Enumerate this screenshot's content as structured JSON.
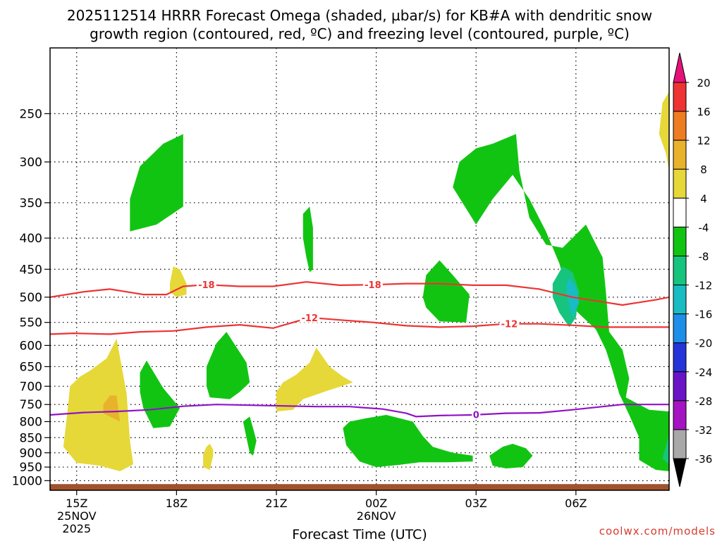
{
  "title_line1": "2025112514 HRRR Forecast Omega (shaded, µbar/s) for KB#A with dendritic snow",
  "title_line2": "growth region (contoured, red, ºC) and freezing level (contoured, purple, ºC)",
  "xlabel": "Forecast Time (UTC)",
  "credit": "coolwx.com/models",
  "chart_data": {
    "type": "heatmap",
    "title": "2025112514 HRRR Forecast Omega (shaded, µbar/s) for KB#A with dendritic snow growth region (contoured, red, ºC) and freezing level (contoured, purple, ºC)",
    "xlabel": "Forecast Time (UTC)",
    "ylabel": "",
    "x_range_hours": [
      14.2,
      32.8
    ],
    "y_range_hpa": [
      195,
      1037
    ],
    "y_scale": "log",
    "grid": true,
    "y_ticks": [
      250,
      300,
      350,
      400,
      450,
      500,
      550,
      600,
      650,
      700,
      750,
      800,
      850,
      900,
      950,
      1000
    ],
    "x_ticks": [
      {
        "h": 15,
        "label": "15Z",
        "sub": [
          "25NOV",
          "2025"
        ]
      },
      {
        "h": 18,
        "label": "18Z",
        "sub": []
      },
      {
        "h": 21,
        "label": "21Z",
        "sub": []
      },
      {
        "h": 24,
        "label": "00Z",
        "sub": [
          "26NOV"
        ]
      },
      {
        "h": 27,
        "label": "03Z",
        "sub": []
      },
      {
        "h": 30,
        "label": "06Z",
        "sub": []
      }
    ],
    "colorbar": {
      "levels": [
        20,
        16,
        12,
        8,
        4,
        -4,
        -8,
        -12,
        -16,
        -20,
        -24,
        -28,
        -32,
        -36
      ],
      "colors": [
        "#ee3333",
        "#ee7d22",
        "#e9b22b",
        "#e6d838",
        "#ffffff",
        "#12c412",
        "#17c47e",
        "#18bcc2",
        "#1e8ee8",
        "#2434d8",
        "#6a14c8",
        "#a414c2",
        "#a8a8a8"
      ],
      "over_color": "#e6127a",
      "under_color": "#000000"
    },
    "shading": [
      {
        "value": -4,
        "color": "#12c412",
        "points": [
          [
            16.6,
            345
          ],
          [
            16.9,
            305
          ],
          [
            17.6,
            280
          ],
          [
            18.2,
            270
          ],
          [
            18.2,
            355
          ],
          [
            17.4,
            380
          ],
          [
            16.6,
            390
          ]
        ]
      },
      {
        "value": -4,
        "color": "#12c412",
        "points": [
          [
            21.8,
            400
          ],
          [
            21.8,
            365
          ],
          [
            22.0,
            355
          ],
          [
            22.1,
            385
          ],
          [
            22.1,
            450
          ],
          [
            22.0,
            455
          ],
          [
            21.9,
            430
          ]
        ]
      },
      {
        "value": -4,
        "color": "#12c412",
        "points": [
          [
            26.3,
            330
          ],
          [
            26.5,
            300
          ],
          [
            27.0,
            285
          ],
          [
            27.5,
            280
          ],
          [
            28.2,
            270
          ],
          [
            28.3,
            310
          ],
          [
            28.6,
            370
          ],
          [
            29.1,
            410
          ],
          [
            29.6,
            415
          ],
          [
            30.3,
            380
          ],
          [
            30.8,
            430
          ],
          [
            30.9,
            490
          ],
          [
            31.0,
            570
          ],
          [
            31.4,
            610
          ],
          [
            31.6,
            680
          ],
          [
            31.5,
            730
          ],
          [
            32.2,
            765
          ],
          [
            32.8,
            770
          ],
          [
            32.8,
            965
          ],
          [
            32.4,
            960
          ],
          [
            31.9,
            925
          ],
          [
            31.9,
            850
          ],
          [
            31.6,
            780
          ],
          [
            31.3,
            720
          ],
          [
            31.1,
            660
          ],
          [
            30.9,
            610
          ],
          [
            30.6,
            565
          ],
          [
            29.9,
            520
          ],
          [
            29.5,
            440
          ],
          [
            29.1,
            390
          ],
          [
            28.6,
            345
          ],
          [
            28.1,
            315
          ],
          [
            27.5,
            345
          ],
          [
            27.0,
            380
          ]
        ]
      },
      {
        "value": -4,
        "color": "#12c412",
        "points": [
          [
            25.4,
            500
          ],
          [
            25.5,
            460
          ],
          [
            25.9,
            435
          ],
          [
            26.3,
            460
          ],
          [
            26.8,
            495
          ],
          [
            26.7,
            550
          ],
          [
            25.9,
            548
          ],
          [
            25.5,
            520
          ]
        ]
      },
      {
        "value": -4,
        "color": "#12c412",
        "points": [
          [
            16.9,
            665
          ],
          [
            17.1,
            635
          ],
          [
            17.6,
            705
          ],
          [
            18.1,
            760
          ],
          [
            17.8,
            815
          ],
          [
            17.3,
            820
          ],
          [
            17.0,
            760
          ],
          [
            16.9,
            715
          ]
        ]
      },
      {
        "value": -4,
        "color": "#12c412",
        "points": [
          [
            18.9,
            650
          ],
          [
            19.2,
            595
          ],
          [
            19.5,
            570
          ],
          [
            20.1,
            640
          ],
          [
            20.2,
            690
          ],
          [
            19.9,
            715
          ],
          [
            19.6,
            735
          ],
          [
            19.0,
            730
          ],
          [
            18.9,
            700
          ]
        ]
      },
      {
        "value": -4,
        "color": "#12c412",
        "points": [
          [
            20.0,
            800
          ],
          [
            20.2,
            785
          ],
          [
            20.3,
            820
          ],
          [
            20.4,
            860
          ],
          [
            20.3,
            910
          ],
          [
            20.2,
            900
          ],
          [
            20.1,
            850
          ]
        ]
      },
      {
        "value": -4,
        "color": "#12c412",
        "points": [
          [
            23.0,
            820
          ],
          [
            23.2,
            800
          ],
          [
            23.7,
            790
          ],
          [
            24.3,
            780
          ],
          [
            25.1,
            800
          ],
          [
            25.4,
            845
          ],
          [
            25.7,
            880
          ],
          [
            26.3,
            900
          ],
          [
            26.9,
            910
          ],
          [
            26.9,
            930
          ],
          [
            26.1,
            933
          ],
          [
            25.3,
            933
          ],
          [
            24.7,
            942
          ],
          [
            24.0,
            950
          ],
          [
            23.5,
            930
          ],
          [
            23.1,
            875
          ]
        ]
      },
      {
        "value": -4,
        "color": "#12c412",
        "points": [
          [
            27.4,
            910
          ],
          [
            27.8,
            880
          ],
          [
            28.1,
            870
          ],
          [
            28.5,
            885
          ],
          [
            28.7,
            910
          ],
          [
            28.4,
            950
          ],
          [
            27.9,
            955
          ],
          [
            27.5,
            945
          ]
        ]
      },
      {
        "value": -8,
        "color": "#17c47e",
        "points": [
          [
            29.3,
            475
          ],
          [
            29.6,
            445
          ],
          [
            29.9,
            455
          ],
          [
            30.1,
            490
          ],
          [
            30.0,
            540
          ],
          [
            29.8,
            560
          ],
          [
            29.5,
            530
          ],
          [
            29.3,
            500
          ]
        ]
      },
      {
        "value": -8,
        "color": "#17c47e",
        "points": [
          [
            32.6,
            920
          ],
          [
            32.8,
            840
          ],
          [
            32.8,
            940
          ]
        ]
      },
      {
        "value": -12,
        "color": "#18bcc2",
        "points": [
          [
            29.8,
            465
          ],
          [
            30.0,
            480
          ],
          [
            30.1,
            510
          ],
          [
            29.9,
            540
          ],
          [
            29.8,
            520
          ],
          [
            29.7,
            480
          ]
        ]
      },
      {
        "value": 4,
        "color": "#e6d838",
        "points": [
          [
            14.8,
            700
          ],
          [
            15.1,
            675
          ],
          [
            15.4,
            660
          ],
          [
            15.9,
            630
          ],
          [
            16.2,
            585
          ],
          [
            16.5,
            720
          ],
          [
            16.6,
            860
          ],
          [
            16.7,
            940
          ],
          [
            16.3,
            965
          ],
          [
            15.7,
            945
          ],
          [
            15.0,
            935
          ],
          [
            14.6,
            880
          ],
          [
            14.7,
            790
          ]
        ]
      },
      {
        "value": 4,
        "color": "#e6d838",
        "points": [
          [
            17.8,
            475
          ],
          [
            17.9,
            445
          ],
          [
            18.1,
            450
          ],
          [
            18.3,
            475
          ],
          [
            18.3,
            495
          ],
          [
            18.0,
            500
          ],
          [
            17.8,
            490
          ]
        ]
      },
      {
        "value": 4,
        "color": "#e6d838",
        "points": [
          [
            21.0,
            715
          ],
          [
            21.2,
            690
          ],
          [
            21.6,
            670
          ],
          [
            22.0,
            640
          ],
          [
            22.2,
            605
          ],
          [
            22.6,
            650
          ],
          [
            23.0,
            675
          ],
          [
            23.3,
            690
          ],
          [
            22.6,
            710
          ],
          [
            21.8,
            735
          ],
          [
            21.5,
            765
          ],
          [
            21.0,
            770
          ]
        ]
      },
      {
        "value": 4,
        "color": "#e6d838",
        "points": [
          [
            18.8,
            905
          ],
          [
            18.9,
            880
          ],
          [
            19.0,
            870
          ],
          [
            19.1,
            890
          ],
          [
            19.1,
            910
          ],
          [
            19.0,
            960
          ],
          [
            18.8,
            950
          ]
        ]
      },
      {
        "value": 4,
        "color": "#e6d838",
        "points": [
          [
            32.5,
            270
          ],
          [
            32.6,
            240
          ],
          [
            32.8,
            230
          ],
          [
            32.8,
            310
          ],
          [
            32.7,
            290
          ],
          [
            32.6,
            280
          ]
        ]
      },
      {
        "value": 8,
        "color": "#e9b22b",
        "points": [
          [
            15.8,
            750
          ],
          [
            16.0,
            725
          ],
          [
            16.2,
            725
          ],
          [
            16.3,
            800
          ],
          [
            16.0,
            785
          ],
          [
            15.8,
            775
          ]
        ]
      }
    ],
    "contours": [
      {
        "level": -18,
        "color": "#ee3333",
        "type": "dendritic",
        "label_positions": [
          18.9,
          23.9
        ],
        "points": [
          [
            14.2,
            500
          ],
          [
            15.2,
            490
          ],
          [
            16.0,
            485
          ],
          [
            17.0,
            495
          ],
          [
            17.7,
            495
          ],
          [
            18.2,
            480
          ],
          [
            18.9,
            477
          ],
          [
            19.9,
            480
          ],
          [
            20.9,
            480
          ],
          [
            21.9,
            472
          ],
          [
            22.9,
            478
          ],
          [
            23.9,
            477
          ],
          [
            24.9,
            475
          ],
          [
            25.9,
            475
          ],
          [
            26.9,
            478
          ],
          [
            27.9,
            478
          ],
          [
            28.9,
            485
          ],
          [
            29.9,
            500
          ],
          [
            30.9,
            510
          ],
          [
            31.4,
            515
          ],
          [
            31.9,
            510
          ],
          [
            32.4,
            505
          ],
          [
            32.8,
            500
          ]
        ]
      },
      {
        "level": -12,
        "color": "#ee3333",
        "type": "dendritic",
        "label_positions": [
          22.0,
          28.0
        ],
        "points": [
          [
            14.2,
            575
          ],
          [
            14.9,
            573
          ],
          [
            16.0,
            575
          ],
          [
            16.9,
            570
          ],
          [
            17.9,
            568
          ],
          [
            18.9,
            560
          ],
          [
            19.9,
            555
          ],
          [
            20.9,
            562
          ],
          [
            21.5,
            550
          ],
          [
            22.0,
            540
          ],
          [
            22.9,
            545
          ],
          [
            23.9,
            550
          ],
          [
            24.9,
            557
          ],
          [
            25.9,
            560
          ],
          [
            26.9,
            558
          ],
          [
            27.9,
            553
          ],
          [
            28.9,
            553
          ],
          [
            29.9,
            556
          ],
          [
            30.9,
            560
          ],
          [
            31.9,
            560
          ],
          [
            32.8,
            560
          ]
        ]
      },
      {
        "level": 0,
        "color": "#9012c8",
        "type": "freezing",
        "label_positions": [
          27.0
        ],
        "points": [
          [
            14.2,
            780
          ],
          [
            15.2,
            773
          ],
          [
            16.2,
            770
          ],
          [
            17.2,
            765
          ],
          [
            18.2,
            755
          ],
          [
            19.2,
            750
          ],
          [
            20.2,
            752
          ],
          [
            21.2,
            754
          ],
          [
            22.2,
            756
          ],
          [
            23.2,
            756
          ],
          [
            24.2,
            763
          ],
          [
            24.9,
            775
          ],
          [
            25.2,
            785
          ],
          [
            25.9,
            782
          ],
          [
            26.9,
            780
          ],
          [
            27.9,
            775
          ],
          [
            28.9,
            774
          ],
          [
            29.9,
            765
          ],
          [
            30.9,
            755
          ],
          [
            31.4,
            750
          ],
          [
            32.8,
            750
          ]
        ]
      }
    ],
    "terrain": {
      "color": "#a0522d",
      "pressure_hpa": 1013
    }
  }
}
